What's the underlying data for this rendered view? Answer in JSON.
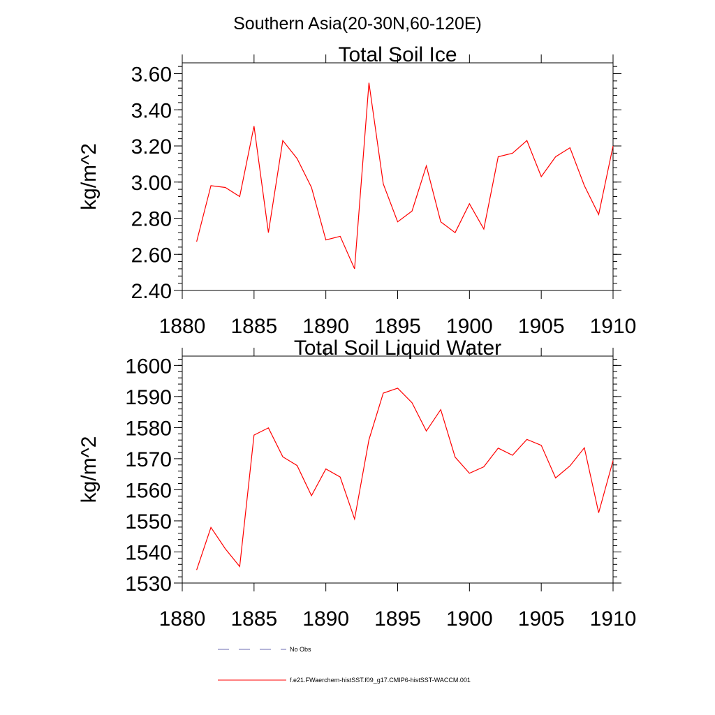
{
  "header": {
    "region_title": "Southern Asia(20-30N,60-120E)"
  },
  "legend": {
    "entries": [
      {
        "label": "No Obs",
        "color": "#6b6bb0",
        "style": "dashed"
      },
      {
        "label": "f.e21.FWaerchem-histSST.f09_g17.CMIP6-histSST-WACCM.001",
        "color": "#ff0000",
        "style": "solid"
      }
    ]
  },
  "chart_data": [
    {
      "type": "line",
      "title": "Total Soil Ice",
      "xlabel": "",
      "ylabel": "kg/m^2",
      "xlim": [
        1880,
        1910
      ],
      "ylim": [
        2.4,
        3.66
      ],
      "x_ticks": [
        1880,
        1885,
        1890,
        1895,
        1900,
        1905,
        1910
      ],
      "x_tick_labels": [
        "1880",
        "1885",
        "1890",
        "1895",
        "1900",
        "1905",
        "1910"
      ],
      "y_ticks": [
        2.4,
        2.6,
        2.8,
        3.0,
        3.2,
        3.4,
        3.6
      ],
      "y_tick_labels": [
        "2.40",
        "2.60",
        "2.80",
        "3.00",
        "3.20",
        "3.40",
        "3.60"
      ],
      "grid": false,
      "series": [
        {
          "color": "#ff0000",
          "x": [
            1881,
            1882,
            1883,
            1884,
            1885,
            1886,
            1887,
            1888,
            1889,
            1890,
            1891,
            1892,
            1893,
            1894,
            1895,
            1896,
            1897,
            1898,
            1899,
            1900,
            1901,
            1902,
            1903,
            1904,
            1905,
            1906,
            1907,
            1908,
            1909,
            1910
          ],
          "values": [
            2.67,
            2.98,
            2.97,
            2.92,
            3.31,
            2.72,
            3.23,
            3.13,
            2.97,
            2.68,
            2.7,
            2.52,
            3.55,
            2.99,
            2.78,
            2.84,
            3.09,
            2.78,
            2.72,
            2.88,
            2.74,
            3.14,
            3.16,
            3.23,
            3.03,
            3.14,
            3.19,
            2.98,
            2.82,
            3.2
          ]
        }
      ]
    },
    {
      "type": "line",
      "title": "Total Soil Liquid Water",
      "xlabel": "",
      "ylabel": "kg/m^2",
      "xlim": [
        1880,
        1910
      ],
      "ylim": [
        1530,
        1603
      ],
      "x_ticks": [
        1880,
        1885,
        1890,
        1895,
        1900,
        1905,
        1910
      ],
      "x_tick_labels": [
        "1880",
        "1885",
        "1890",
        "1895",
        "1900",
        "1905",
        "1910"
      ],
      "y_ticks": [
        1530,
        1540,
        1550,
        1560,
        1570,
        1580,
        1590,
        1600
      ],
      "y_tick_labels": [
        "1530",
        "1540",
        "1550",
        "1560",
        "1570",
        "1580",
        "1590",
        "1600"
      ],
      "grid": false,
      "series": [
        {
          "color": "#ff0000",
          "x": [
            1881,
            1882,
            1883,
            1884,
            1885,
            1886,
            1887,
            1888,
            1889,
            1890,
            1891,
            1892,
            1893,
            1894,
            1895,
            1896,
            1897,
            1898,
            1899,
            1900,
            1901,
            1902,
            1903,
            1904,
            1905,
            1906,
            1907,
            1908,
            1909,
            1910
          ],
          "values": [
            1534.2,
            1547.9,
            1541.0,
            1535.3,
            1577.6,
            1579.9,
            1570.6,
            1567.8,
            1558.1,
            1566.7,
            1564.1,
            1550.6,
            1576.1,
            1591.1,
            1592.7,
            1588.0,
            1578.9,
            1585.8,
            1570.5,
            1565.3,
            1567.4,
            1573.4,
            1571.1,
            1576.2,
            1574.3,
            1563.8,
            1567.7,
            1573.5,
            1552.6,
            1569.4
          ]
        }
      ]
    }
  ]
}
